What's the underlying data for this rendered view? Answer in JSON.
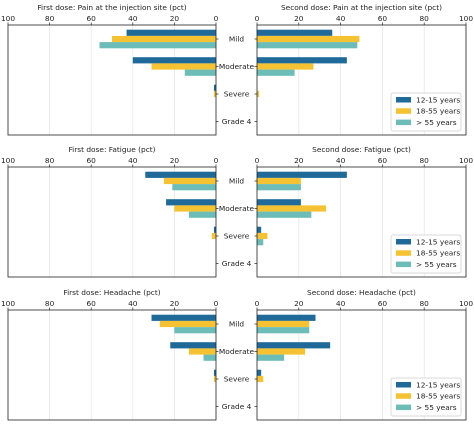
{
  "chart_data": {
    "type": "bar",
    "orientation": "horizontal-butterfly",
    "categories": [
      "Mild",
      "Moderate",
      "Severe",
      "Grade 4"
    ],
    "series_names": [
      "12-15 years",
      "18-55 years",
      "> 55 years"
    ],
    "colors": [
      "#1f6a99",
      "#f5c231",
      "#6cbcb7"
    ],
    "xlim": [
      0,
      100
    ],
    "xticks": [
      0,
      20,
      40,
      60,
      80,
      100
    ],
    "xticks_left": [
      100,
      80,
      60,
      40,
      20,
      0
    ],
    "grid": "vertical",
    "legend_position": "lower-right",
    "panels": [
      {
        "symptom": "Pain at the injection site",
        "first_title": "First dose: Pain at the injection site (pct)",
        "second_title": "Second dose: Pain at the injection site (pct)",
        "first_dose": [
          {
            "name": "12-15 years",
            "values": [
              43,
              40,
              1,
              0
            ]
          },
          {
            "name": "18-55 years",
            "values": [
              50,
              31,
              1,
              0
            ]
          },
          {
            "name": "> 55 years",
            "values": [
              56,
              15,
              0,
              0
            ]
          }
        ],
        "second_dose": [
          {
            "name": "12-15 years",
            "values": [
              36,
              43,
              0,
              0
            ]
          },
          {
            "name": "18-55 years",
            "values": [
              49,
              27,
              1,
              0
            ]
          },
          {
            "name": "> 55 years",
            "values": [
              48,
              18,
              0,
              0
            ]
          }
        ]
      },
      {
        "symptom": "Fatigue",
        "first_title": "First dose: Fatigue (pct)",
        "second_title": "Second dose: Fatigue (pct)",
        "first_dose": [
          {
            "name": "12-15 years",
            "values": [
              34,
              24,
              1,
              0
            ]
          },
          {
            "name": "18-55 years",
            "values": [
              25,
              20,
              2,
              0
            ]
          },
          {
            "name": "> 55 years",
            "values": [
              21,
              13,
              0,
              0
            ]
          }
        ],
        "second_dose": [
          {
            "name": "12-15 years",
            "values": [
              43,
              21,
              2,
              0
            ]
          },
          {
            "name": "18-55 years",
            "values": [
              21,
              33,
              5,
              0
            ]
          },
          {
            "name": "> 55 years",
            "values": [
              21,
              26,
              3,
              0
            ]
          }
        ]
      },
      {
        "symptom": "Headache",
        "first_title": "First dose: Headache (pct)",
        "second_title": "Second dose: Headache (pct)",
        "first_dose": [
          {
            "name": "12-15 years",
            "values": [
              31,
              22,
              1,
              0
            ]
          },
          {
            "name": "18-55 years",
            "values": [
              27,
              13,
              1,
              0
            ]
          },
          {
            "name": "> 55 years",
            "values": [
              20,
              6,
              0,
              0
            ]
          }
        ],
        "second_dose": [
          {
            "name": "12-15 years",
            "values": [
              28,
              35,
              2,
              0
            ]
          },
          {
            "name": "18-55 years",
            "values": [
              25,
              23,
              3,
              0
            ]
          },
          {
            "name": "> 55 years",
            "values": [
              25,
              13,
              0,
              0
            ]
          }
        ]
      }
    ]
  }
}
